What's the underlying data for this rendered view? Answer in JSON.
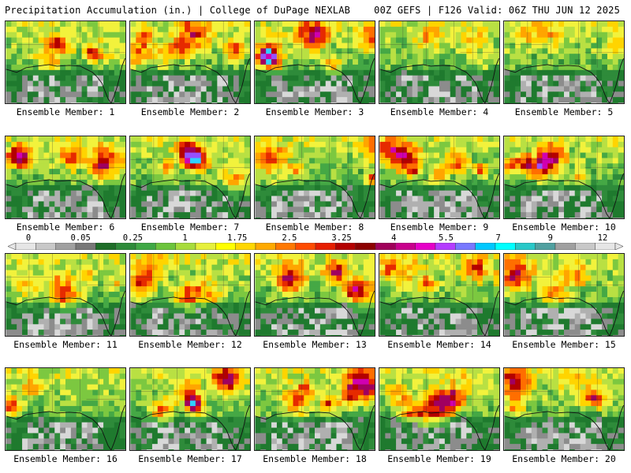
{
  "header": {
    "left": "Precipitation Accumulation (in.) | College of DuPage NEXLAB",
    "right": "00Z GEFS | F126 Valid: 06Z THU JUN 12 2025"
  },
  "members": [
    {
      "label": "Ensemble Member: 1"
    },
    {
      "label": "Ensemble Member: 2"
    },
    {
      "label": "Ensemble Member: 3"
    },
    {
      "label": "Ensemble Member: 4"
    },
    {
      "label": "Ensemble Member: 5"
    },
    {
      "label": "Ensemble Member: 6"
    },
    {
      "label": "Ensemble Member: 7"
    },
    {
      "label": "Ensemble Member: 8"
    },
    {
      "label": "Ensemble Member: 9"
    },
    {
      "label": "Ensemble Member: 10"
    },
    {
      "label": "Ensemble Member: 11"
    },
    {
      "label": "Ensemble Member: 12"
    },
    {
      "label": "Ensemble Member: 13"
    },
    {
      "label": "Ensemble Member: 14"
    },
    {
      "label": "Ensemble Member: 15"
    },
    {
      "label": "Ensemble Member: 16"
    },
    {
      "label": "Ensemble Member: 17"
    },
    {
      "label": "Ensemble Member: 18"
    },
    {
      "label": "Ensemble Member: 19"
    },
    {
      "label": "Ensemble Member: 20"
    }
  ],
  "colorbar": {
    "labels": [
      "0",
      "0.05",
      "0.25",
      "1",
      "1.75",
      "2.5",
      "3.25",
      "4",
      "5.5",
      "7",
      "9",
      "12"
    ],
    "colors": [
      "#e6e6e6",
      "#c8c8c8",
      "#a0a0a0",
      "#787878",
      "#1e6e28",
      "#2e8b3a",
      "#3fa845",
      "#6cc43c",
      "#a8dc3c",
      "#e6f03c",
      "#ffff00",
      "#ffd700",
      "#ffaa00",
      "#ff7800",
      "#ff4b00",
      "#e61e00",
      "#b40000",
      "#8c0000",
      "#a0005a",
      "#c8008c",
      "#e600c8",
      "#b43cff",
      "#7878ff",
      "#00c8ff",
      "#00ffff",
      "#28c8c8",
      "#50a0a0",
      "#a0a0a0",
      "#c8c8c8",
      "#e6e6e6"
    ]
  }
}
